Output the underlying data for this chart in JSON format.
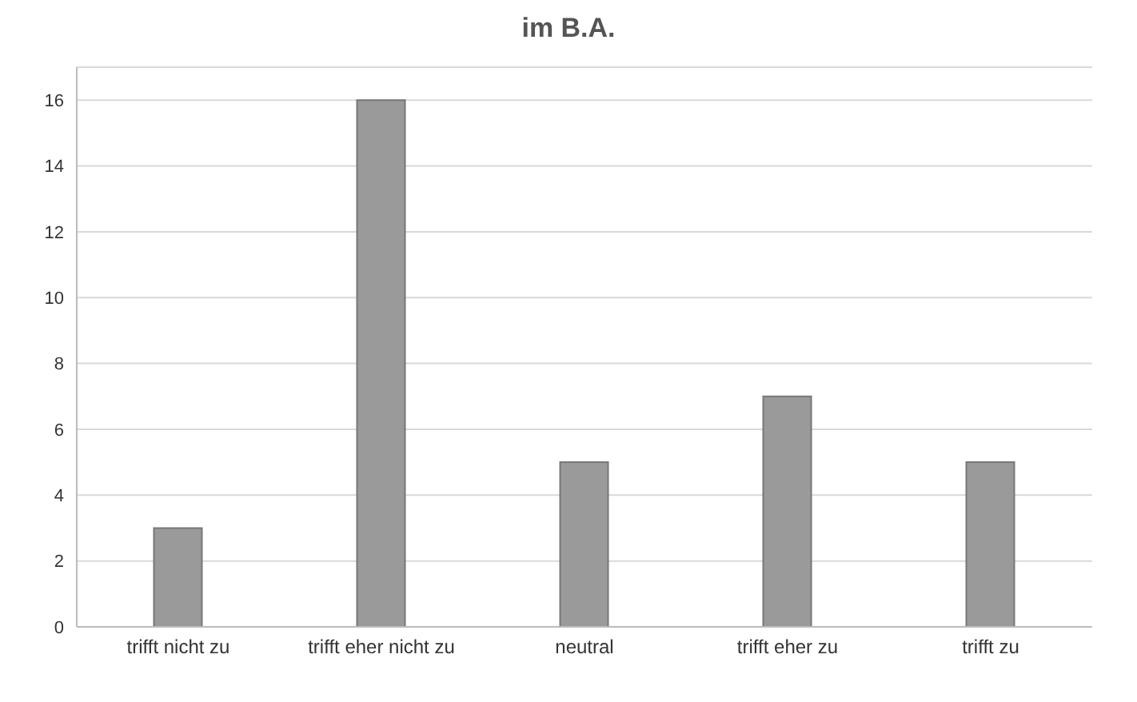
{
  "chart_data": {
    "type": "bar",
    "title": "im B.A.",
    "categories": [
      "trifft nicht zu",
      "trifft eher nicht zu",
      "neutral",
      "trifft eher zu",
      "trifft zu"
    ],
    "values": [
      3,
      16,
      5,
      7,
      5
    ],
    "color": "#9a9a9a",
    "ylim": [
      0,
      17
    ],
    "yticks": [
      0,
      2,
      4,
      6,
      8,
      10,
      12,
      14,
      16
    ],
    "grid": "y"
  }
}
